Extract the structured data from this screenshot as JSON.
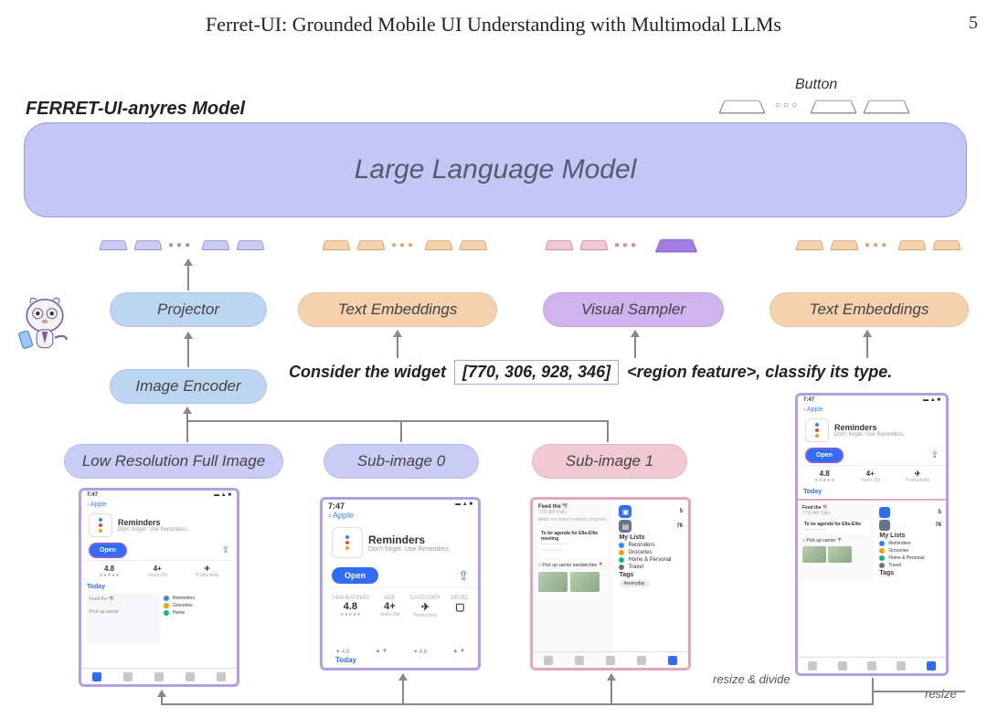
{
  "paper": {
    "title": "Ferret-UI: Grounded Mobile UI Understanding with Multimodal LLMs",
    "page": "5"
  },
  "header": {
    "model_label": "FERRET-UI-anyres Model",
    "output_label": "Button"
  },
  "llm": {
    "text": "Large Language Model"
  },
  "modules": {
    "projector": "Projector",
    "image_encoder": "Image Encoder",
    "text_emb_left": "Text Embeddings",
    "visual_sampler": "Visual Sampler",
    "text_emb_right": "Text Embeddings",
    "low_res": "Low Resolution Full Image",
    "sub0": "Sub-image 0",
    "sub1": "Sub-image 1"
  },
  "prompt": {
    "prefix": "Consider the widget",
    "coords": "[770, 306, 928, 346]",
    "region": "<region feature>",
    "suffix": ", classify its type."
  },
  "flow": {
    "resize_divide": "resize & divide",
    "resize": "resize"
  },
  "colors": {
    "llm_bg": "#c4c6f5",
    "projector_bg": "#bcd6f2",
    "encoder_bg": "#bcd6f2",
    "textemb_bg": "#f5d2ad",
    "sampler_bg": "#cfb3ef",
    "lowres_bg": "#c9cdf5",
    "sub0_bg": "#c9cdf5",
    "sub1_bg": "#f1c9d4",
    "border_purple": "#b49ee8",
    "border_pink": "#e6a6b8"
  },
  "screenshot": {
    "time": "7:47",
    "back": "Apple",
    "app_name": "Reminders",
    "app_tagline": "Don't forget. Use Reminders.",
    "open": "Open",
    "stats": {
      "rating_n": "4.8",
      "rating_l": "★★★★★",
      "age_n": "4+",
      "age_l": "Years Old",
      "cat_n": "✈",
      "cat_l": "Productivity"
    },
    "today": "Today",
    "lists_h": "My Lists",
    "lists": [
      {
        "color": "#3b82f6",
        "label": "Reminders"
      },
      {
        "color": "#f59e0b",
        "label": "Groceries"
      },
      {
        "color": "#10b981",
        "label": "Home & Personal"
      },
      {
        "color": "#6b7280",
        "label": "Travel"
      }
    ],
    "tags_h": "Tags",
    "counts": {
      "a": "5",
      "b": "76"
    }
  }
}
